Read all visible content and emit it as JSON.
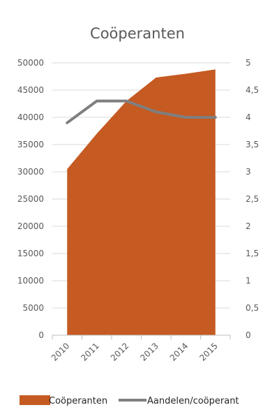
{
  "chart_data": {
    "type": "area",
    "title": "Coöperanten",
    "categories": [
      "2010",
      "2011",
      "2012",
      "2013",
      "2014",
      "2015"
    ],
    "series": [
      {
        "name": "Coöperanten",
        "type": "area",
        "axis": "left",
        "color": "#C55A22",
        "values": [
          30500,
          37000,
          43000,
          47300,
          48000,
          48800
        ]
      },
      {
        "name": "Aandelen/coöperant",
        "type": "line",
        "axis": "right",
        "color": "#7F7F7F",
        "values": [
          3.9,
          4.3,
          4.3,
          4.1,
          4.0,
          4.0
        ]
      }
    ],
    "y_left": {
      "min": 0,
      "max": 50000,
      "ticks": [
        "0",
        "5000",
        "10000",
        "15000",
        "20000",
        "25000",
        "30000",
        "35000",
        "40000",
        "45000",
        "50000"
      ]
    },
    "y_right": {
      "min": 0,
      "max": 5,
      "ticks": [
        "0",
        "0,5",
        "1",
        "1,5",
        "2",
        "2,5",
        "3",
        "3,5",
        "4",
        "4,5",
        "5"
      ]
    },
    "grid": true,
    "legend": "bottom"
  }
}
